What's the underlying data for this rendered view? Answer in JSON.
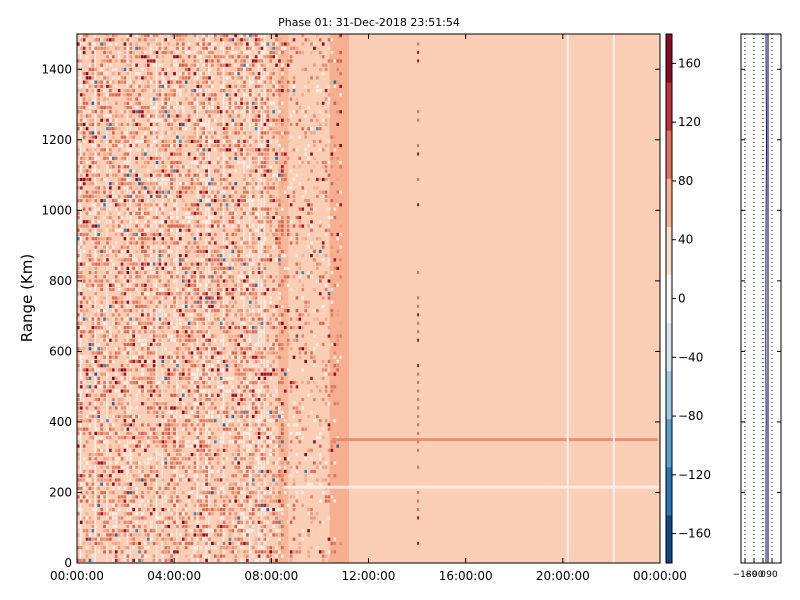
{
  "chart_data": [
    {
      "type": "heatmap",
      "title": "Phase 01: 31-Dec-2018 23:51:54",
      "xlabel": "",
      "ylabel": "Range (Km)",
      "x_ticks": [
        "00:00:00",
        "04:00:00",
        "08:00:00",
        "12:00:00",
        "16:00:00",
        "20:00:00",
        "00:00:00"
      ],
      "x_tick_hours": [
        0,
        4,
        8,
        12,
        16,
        20,
        24
      ],
      "xlim_hours": [
        0,
        24
      ],
      "y_ticks": [
        0,
        200,
        400,
        600,
        800,
        1000,
        1200,
        1400
      ],
      "ylim": [
        0,
        1500
      ],
      "grid": false,
      "colorbar": {
        "vmin": -180,
        "vmax": 180,
        "ticks": [
          -160,
          -120,
          -80,
          -40,
          0,
          40,
          80,
          120,
          160
        ],
        "colors": [
          "#053061",
          "#2166ac",
          "#4393c3",
          "#92c5de",
          "#d1e5f0",
          "#f7f7f7",
          "#fddbc7",
          "#f4a582",
          "#d6604d",
          "#b2182b",
          "#67001f"
        ]
      },
      "background_value": 45,
      "vertical_bands": [
        {
          "start_hour": 8.3,
          "end_hour": 8.7,
          "value": 60
        },
        {
          "start_hour": 10.4,
          "end_hour": 11.2,
          "value": 65
        }
      ],
      "gap_lines_hours": [
        20.2,
        22.1
      ],
      "horizontal_features": [
        {
          "range_km": 350,
          "start_hour": 10.5,
          "end_hour": 23.9,
          "value": 90
        },
        {
          "range_km": 215,
          "start_hour": 8.5,
          "end_hour": 24.0,
          "value": 5
        }
      ],
      "noisy_region_hours": [
        0,
        10.8
      ]
    },
    {
      "type": "line",
      "title": "",
      "xlabel": "",
      "ylabel": "",
      "x_ticks": [
        "-180",
        "-90",
        "0",
        "90"
      ],
      "xlim": [
        -220,
        180
      ],
      "ylim": [
        0,
        1500
      ],
      "grid": true,
      "series": [
        {
          "color": "#0000aa",
          "x": [
            30,
            30,
            30,
            32,
            28,
            30,
            35,
            30
          ],
          "y": [
            0,
            200,
            350,
            400,
            600,
            930,
            1200,
            1500
          ]
        }
      ],
      "reference_line": {
        "x": 50,
        "color": "#000000"
      }
    }
  ]
}
